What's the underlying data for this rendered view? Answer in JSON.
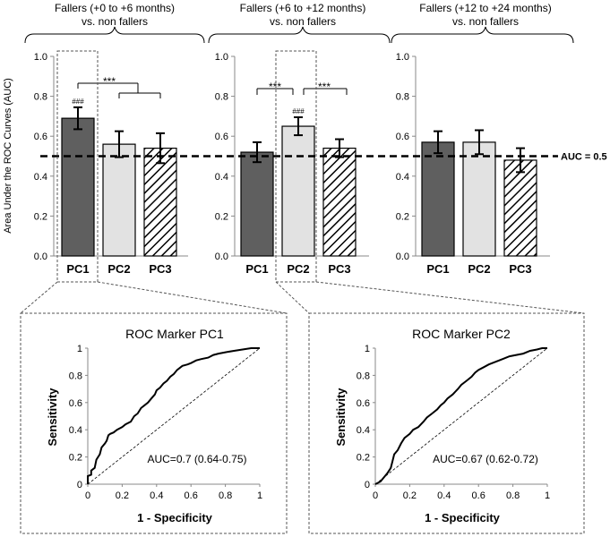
{
  "chart_data": [
    {
      "type": "bar",
      "panel": "Fallers (+0 to +6 months) vs. non fallers",
      "title_line1": "Fallers (+0 to +6 months)",
      "title_line2": "vs. non fallers",
      "categories": [
        "PC1",
        "PC2",
        "PC3"
      ],
      "values": [
        0.69,
        0.56,
        0.54
      ],
      "error": [
        0.055,
        0.065,
        0.075
      ],
      "fills": [
        "dark",
        "light",
        "hatched"
      ],
      "ylabel": "Area Under the ROC Curves (AUC)",
      "ylim": [
        0,
        1.0
      ],
      "yticks": [
        "0.0",
        "0.2",
        "0.4",
        "0.6",
        "0.8",
        "1.0"
      ],
      "bar_marks": [
        "###",
        "",
        ""
      ],
      "significance_label": "***",
      "reference_line": 0.5
    },
    {
      "type": "bar",
      "panel": "Fallers (+6 to +12 months) vs. non fallers",
      "title_line1": "Fallers (+6 to +12 months)",
      "title_line2": "vs. non fallers",
      "categories": [
        "PC1",
        "PC2",
        "PC3"
      ],
      "values": [
        0.52,
        0.65,
        0.54
      ],
      "error": [
        0.05,
        0.045,
        0.045
      ],
      "fills": [
        "dark",
        "light",
        "hatched"
      ],
      "ylim": [
        0,
        1.0
      ],
      "yticks": [
        "0.0",
        "0.2",
        "0.4",
        "0.6",
        "0.8",
        "1.0"
      ],
      "bar_marks": [
        "",
        "###",
        ""
      ],
      "significance_labels": [
        "***",
        "***"
      ],
      "reference_line": 0.5
    },
    {
      "type": "bar",
      "panel": "Fallers (+12 to +24 months) vs. non fallers",
      "title_line1": "Fallers (+12 to +24 months)",
      "title_line2": "vs. non fallers",
      "categories": [
        "PC1",
        "PC2",
        "PC3"
      ],
      "values": [
        0.57,
        0.57,
        0.48
      ],
      "error": [
        0.055,
        0.06,
        0.06
      ],
      "fills": [
        "dark",
        "light",
        "hatched"
      ],
      "ylim": [
        0,
        1.0
      ],
      "yticks": [
        "0.0",
        "0.2",
        "0.4",
        "0.6",
        "0.8",
        "1.0"
      ],
      "reference_line": 0.5,
      "reference_label": "AUC = 0.5"
    },
    {
      "type": "line",
      "title": "ROC Marker PC1",
      "xlabel": "1 - Specificity",
      "ylabel": "Sensitivity",
      "xlim": [
        0,
        1
      ],
      "ylim": [
        0,
        1
      ],
      "xticks": [
        "0",
        "0.2",
        "0.4",
        "0.6",
        "0.8",
        "1"
      ],
      "yticks": [
        "0",
        "0.2",
        "0.4",
        "0.6",
        "0.8",
        "1"
      ],
      "annotation": "AUC=0.7 (0.64-0.75)",
      "series": [
        {
          "name": "ROC",
          "x": [
            0,
            0,
            0.02,
            0.02,
            0.04,
            0.05,
            0.07,
            0.08,
            0.1,
            0.11,
            0.12,
            0.13,
            0.15,
            0.17,
            0.2,
            0.22,
            0.25,
            0.27,
            0.29,
            0.31,
            0.33,
            0.35,
            0.37,
            0.39,
            0.4,
            0.42,
            0.44,
            0.46,
            0.48,
            0.5,
            0.52,
            0.55,
            0.58,
            0.6,
            0.63,
            0.66,
            0.7,
            0.73,
            0.76,
            0.8,
            0.85,
            0.9,
            0.95,
            1
          ],
          "y": [
            0,
            0.06,
            0.07,
            0.1,
            0.12,
            0.18,
            0.22,
            0.27,
            0.3,
            0.32,
            0.36,
            0.37,
            0.38,
            0.4,
            0.42,
            0.44,
            0.46,
            0.5,
            0.52,
            0.56,
            0.58,
            0.6,
            0.63,
            0.66,
            0.69,
            0.71,
            0.74,
            0.76,
            0.79,
            0.81,
            0.84,
            0.87,
            0.88,
            0.89,
            0.91,
            0.92,
            0.93,
            0.95,
            0.96,
            0.97,
            0.98,
            0.99,
            1,
            1
          ]
        },
        {
          "name": "chance",
          "x": [
            0,
            1
          ],
          "y": [
            0,
            1
          ],
          "style": "dashed"
        }
      ]
    },
    {
      "type": "line",
      "title": "ROC Marker PC2",
      "xlabel": "1 - Specificity",
      "ylabel": "Sensitivity",
      "xlim": [
        0,
        1
      ],
      "ylim": [
        0,
        1
      ],
      "xticks": [
        "0",
        "0.2",
        "0.4",
        "0.6",
        "0.8",
        "1"
      ],
      "yticks": [
        "0",
        "0.2",
        "0.4",
        "0.6",
        "0.8",
        "1"
      ],
      "annotation": "AUC=0.67 (0.62-0.72)",
      "series": [
        {
          "name": "ROC",
          "x": [
            0,
            0.03,
            0.05,
            0.07,
            0.09,
            0.1,
            0.11,
            0.13,
            0.15,
            0.17,
            0.2,
            0.22,
            0.25,
            0.28,
            0.3,
            0.33,
            0.36,
            0.38,
            0.4,
            0.42,
            0.45,
            0.48,
            0.5,
            0.53,
            0.56,
            0.58,
            0.6,
            0.63,
            0.66,
            0.7,
            0.74,
            0.78,
            0.82,
            0.86,
            0.9,
            0.94,
            0.97,
            1
          ],
          "y": [
            0,
            0.02,
            0.05,
            0.08,
            0.12,
            0.17,
            0.22,
            0.25,
            0.3,
            0.34,
            0.37,
            0.4,
            0.42,
            0.46,
            0.49,
            0.52,
            0.55,
            0.58,
            0.6,
            0.63,
            0.66,
            0.7,
            0.73,
            0.76,
            0.79,
            0.82,
            0.84,
            0.86,
            0.88,
            0.9,
            0.92,
            0.94,
            0.95,
            0.96,
            0.98,
            0.99,
            1,
            1
          ]
        },
        {
          "name": "chance",
          "x": [
            0,
            1
          ],
          "y": [
            0,
            1
          ],
          "style": "dashed"
        }
      ]
    }
  ],
  "colors": {
    "dark_bar": "#5f5f5f",
    "light_bar": "#e2e2e2",
    "axis": "#888888",
    "text": "#000000"
  }
}
